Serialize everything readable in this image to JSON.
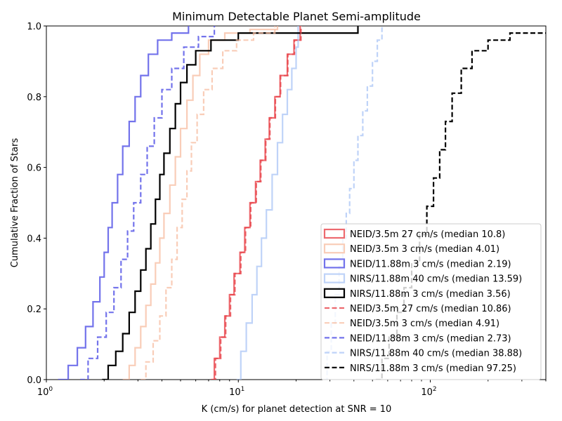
{
  "chart_data": {
    "type": "line",
    "title": "Minimum Detectable Planet Semi-amplitude",
    "xlabel": "K (cm/s) for planet detection at SNR = 10",
    "ylabel": "Cumulative Fraction of Stars",
    "x_scale": "log",
    "xlim": [
      1,
      400
    ],
    "ylim": [
      0,
      1
    ],
    "x_ticks": [
      {
        "value": 1,
        "base": "10",
        "exp": "0"
      },
      {
        "value": 10,
        "base": "10",
        "exp": "1"
      },
      {
        "value": 100,
        "base": "10",
        "exp": "2"
      }
    ],
    "y_ticks": [
      "0.0",
      "0.2",
      "0.4",
      "0.6",
      "0.8",
      "1.0"
    ],
    "grid": false,
    "legend_position": "lower-right",
    "series": [
      {
        "name": "NEID/3.5m 27 cm/s (median 10.8)",
        "color": "#e8454b",
        "alpha": 0.8,
        "style": "solid",
        "x": [
          7.2,
          7.5,
          8.0,
          8.5,
          9.0,
          9.5,
          10.2,
          10.8,
          11.5,
          12.3,
          13.0,
          13.8,
          14.5,
          15.5,
          16.5,
          18.0,
          19.5,
          21.0
        ],
        "y": [
          0.0,
          0.06,
          0.12,
          0.18,
          0.24,
          0.3,
          0.36,
          0.43,
          0.5,
          0.56,
          0.62,
          0.68,
          0.74,
          0.8,
          0.86,
          0.92,
          0.96,
          1.0
        ]
      },
      {
        "name": "NEID/3.5m 3 cm/s (median 4.01)",
        "color": "#f7b89a",
        "alpha": 0.7,
        "style": "solid",
        "x": [
          2.5,
          2.7,
          2.9,
          3.1,
          3.3,
          3.5,
          3.7,
          3.9,
          4.1,
          4.4,
          4.7,
          5.0,
          5.4,
          5.8,
          6.3,
          7.0,
          8.5,
          11.5,
          16.0
        ],
        "y": [
          0.0,
          0.04,
          0.09,
          0.15,
          0.21,
          0.27,
          0.33,
          0.4,
          0.47,
          0.55,
          0.63,
          0.71,
          0.79,
          0.86,
          0.92,
          0.96,
          0.98,
          0.99,
          1.0
        ]
      },
      {
        "name": "NEID/11.88m 3 cm/s (median 2.19)",
        "color": "#5b5be8",
        "alpha": 0.85,
        "style": "solid",
        "x": [
          1.15,
          1.3,
          1.45,
          1.6,
          1.75,
          1.9,
          2.0,
          2.1,
          2.2,
          2.35,
          2.5,
          2.7,
          2.9,
          3.1,
          3.4,
          3.8,
          4.5,
          5.5
        ],
        "y": [
          0.0,
          0.04,
          0.09,
          0.15,
          0.22,
          0.29,
          0.36,
          0.43,
          0.5,
          0.58,
          0.66,
          0.73,
          0.8,
          0.86,
          0.92,
          0.96,
          0.98,
          1.0
        ]
      },
      {
        "name": "NIRS/11.88m 40 cm/s (median 13.59)",
        "color": "#a9c4f5",
        "alpha": 0.75,
        "style": "solid",
        "x": [
          9.8,
          10.3,
          11.0,
          11.8,
          12.5,
          13.2,
          14.0,
          15.0,
          16.0,
          17.0,
          18.0,
          19.0,
          20.0,
          20.5
        ],
        "y": [
          0.0,
          0.08,
          0.16,
          0.24,
          0.32,
          0.4,
          0.48,
          0.58,
          0.67,
          0.75,
          0.82,
          0.88,
          0.94,
          1.0
        ]
      },
      {
        "name": "NIRS/11.88m 3 cm/s (median 3.56)",
        "color": "#000000",
        "alpha": 1.0,
        "style": "solid",
        "x": [
          1.95,
          2.1,
          2.3,
          2.5,
          2.7,
          2.9,
          3.1,
          3.3,
          3.5,
          3.7,
          3.9,
          4.1,
          4.4,
          4.7,
          5.0,
          5.4,
          6.0,
          7.2,
          10.0,
          42.0
        ],
        "y": [
          0.0,
          0.04,
          0.08,
          0.13,
          0.19,
          0.25,
          0.31,
          0.37,
          0.44,
          0.51,
          0.58,
          0.64,
          0.71,
          0.78,
          0.84,
          0.89,
          0.93,
          0.96,
          0.98,
          1.0
        ]
      },
      {
        "name": "NEID/3.5m 27 cm/s (median 10.86)",
        "color": "#e8454b",
        "alpha": 0.8,
        "style": "dashed",
        "x": [
          7.3,
          7.6,
          8.1,
          8.6,
          9.1,
          9.6,
          10.3,
          10.9,
          11.6,
          12.4,
          13.1,
          13.9,
          14.6,
          15.6,
          16.6,
          18.1,
          19.6,
          21.2
        ],
        "y": [
          0.0,
          0.06,
          0.12,
          0.18,
          0.24,
          0.3,
          0.36,
          0.43,
          0.5,
          0.56,
          0.62,
          0.68,
          0.74,
          0.8,
          0.86,
          0.92,
          0.96,
          1.0
        ]
      },
      {
        "name": "NEID/3.5m 3 cm/s (median 4.91)",
        "color": "#f7b89a",
        "alpha": 0.7,
        "style": "dashed",
        "x": [
          3.1,
          3.3,
          3.6,
          3.9,
          4.2,
          4.5,
          4.8,
          5.1,
          5.4,
          5.7,
          6.1,
          6.6,
          7.3,
          8.3,
          9.8,
          12.0,
          15.5
        ],
        "y": [
          0.0,
          0.05,
          0.11,
          0.18,
          0.26,
          0.34,
          0.43,
          0.51,
          0.59,
          0.67,
          0.75,
          0.82,
          0.88,
          0.93,
          0.96,
          0.98,
          1.0
        ]
      },
      {
        "name": "NEID/11.88m 3 cm/s (median 2.73)",
        "color": "#5b5be8",
        "alpha": 0.85,
        "style": "dashed",
        "x": [
          1.5,
          1.65,
          1.85,
          2.05,
          2.25,
          2.45,
          2.65,
          2.85,
          3.1,
          3.35,
          3.65,
          4.0,
          4.5,
          5.2,
          6.2,
          7.5
        ],
        "y": [
          0.0,
          0.06,
          0.12,
          0.19,
          0.26,
          0.34,
          0.42,
          0.5,
          0.58,
          0.66,
          0.74,
          0.82,
          0.88,
          0.94,
          0.97,
          1.0
        ]
      },
      {
        "name": "NIRS/11.88m 40 cm/s (median 38.88)",
        "color": "#a9c4f5",
        "alpha": 0.75,
        "style": "dashed",
        "x": [
          28.0,
          29.0,
          30.5,
          32.0,
          33.5,
          35.0,
          36.5,
          38.0,
          40.0,
          42.0,
          44.5,
          47.0,
          50.0,
          53.0,
          56.0
        ],
        "y": [
          0.0,
          0.08,
          0.16,
          0.24,
          0.32,
          0.4,
          0.47,
          0.54,
          0.62,
          0.69,
          0.76,
          0.83,
          0.9,
          0.96,
          1.0
        ]
      },
      {
        "name": "NIRS/11.88m 3 cm/s (median 97.25)",
        "color": "#000000",
        "alpha": 1.0,
        "style": "dashed",
        "x": [
          52.0,
          56.0,
          61.0,
          67.0,
          73.0,
          80.0,
          88.0,
          96.0,
          104.0,
          112.0,
          120.0,
          130.0,
          145.0,
          165.0,
          200.0,
          260.0,
          400.0
        ],
        "y": [
          0.0,
          0.06,
          0.12,
          0.19,
          0.26,
          0.33,
          0.41,
          0.49,
          0.57,
          0.65,
          0.73,
          0.81,
          0.88,
          0.93,
          0.96,
          0.98,
          0.98
        ]
      }
    ]
  }
}
